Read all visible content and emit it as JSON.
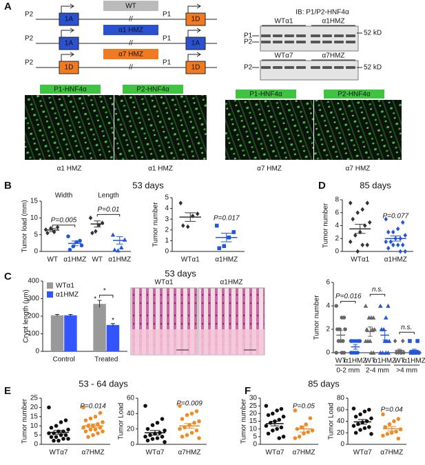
{
  "panel_labels": [
    "A",
    "B",
    "C",
    "D",
    "E",
    "F"
  ],
  "panel_a": {
    "constructs": [
      {
        "left_promoter": "P2",
        "left_exon": "1A",
        "insert": "WT",
        "right_promoter": "P1",
        "right_exon": "1D"
      },
      {
        "left_promoter": "P2",
        "left_exon": "1A",
        "insert": "α1 HMZ",
        "right_promoter": "P1",
        "right_exon": "1A"
      },
      {
        "left_promoter": "P2",
        "left_exon": "1D",
        "insert": "α7 HMZ",
        "right_promoter": "P1",
        "right_exon": "1D"
      }
    ],
    "blot_title": "IB: P1/P2-HNF4α",
    "blots": [
      {
        "lanes": [
          "WTα1",
          "α1HMZ"
        ],
        "bands": [
          "P1",
          "P2"
        ],
        "marker": "52 kD"
      },
      {
        "lanes": [
          "WTα7",
          "α7HMZ"
        ],
        "bands": [
          "P2"
        ],
        "marker": "52 kD"
      }
    ],
    "images": [
      {
        "stain": "P1-HNF4α",
        "label": "α1 HMZ"
      },
      {
        "stain": "P2-HNF4α",
        "label": "α1 HMZ"
      },
      {
        "stain": "P1-HNF4α",
        "label": "α7 HMZ"
      },
      {
        "stain": "P2-HNF4α",
        "label": "α7 HMZ"
      }
    ]
  },
  "panel_b": {
    "title": "53 days",
    "charts": [
      {
        "type": "dotplot",
        "ylabel": "Tumor load (mm)",
        "ylim": [
          0,
          15
        ],
        "yticks": [
          0,
          5,
          10,
          15
        ],
        "group_headers": [
          "Width",
          "Length"
        ],
        "groups": [
          {
            "label": "WT",
            "color": "#333333",
            "marker": "diamond",
            "values": [
              6.5,
              7.2,
              5.8,
              6.9,
              5.5
            ],
            "mean": 6.4,
            "sem": 0.5
          },
          {
            "label": "α1HMZ",
            "color": "#2255dd",
            "marker": "circle",
            "values": [
              4.5,
              3.2,
              2.8,
              1.5,
              0.5,
              1.8
            ],
            "mean": 2.4,
            "sem": 0.7
          },
          {
            "label": "WT",
            "color": "#333333",
            "marker": "diamond",
            "values": [
              10,
              8.5,
              7.9,
              6,
              5.5
            ],
            "mean": 8.2,
            "sem": 0.9
          },
          {
            "label": "α1HMZ",
            "color": "#2255dd",
            "marker": "triangle",
            "values": [
              5,
              3.5,
              1.2,
              0.3,
              0.5
            ],
            "mean": 3.3,
            "sem": 1.1
          }
        ],
        "annotations": [
          "P=0.005",
          "P=0.01"
        ]
      },
      {
        "type": "dotplot",
        "ylabel": "Tumor number",
        "ylim": [
          0,
          5
        ],
        "yticks": [
          0,
          1,
          2,
          3,
          4,
          5
        ],
        "groups": [
          {
            "label": "WTα1",
            "color": "#333333",
            "marker": "diamond",
            "values": [
              4.5,
              3.5,
              3.3,
              2.3,
              2.4
            ],
            "mean": 3.2,
            "sem": 0.4
          },
          {
            "label": "α1HMZ",
            "color": "#2255dd",
            "marker": "square",
            "values": [
              2.4,
              1.8,
              1.3,
              0.5,
              0.3
            ],
            "mean": 1.3,
            "sem": 0.4
          }
        ],
        "annotations": [
          "P=0.017"
        ]
      }
    ]
  },
  "panel_c": {
    "title": "53 days",
    "chart": {
      "type": "bar",
      "ylabel": "Crypt length (μm)",
      "ylim": [
        0,
        400
      ],
      "yticks": [
        0,
        100,
        200,
        300,
        400
      ],
      "categories": [
        "Control",
        "Treated"
      ],
      "series": [
        {
          "name": "WTα1",
          "color": "#999999",
          "values": [
            205,
            270
          ],
          "errors": [
            5,
            20
          ]
        },
        {
          "name": "α1HMZ",
          "color": "#3355ff",
          "values": [
            205,
            150
          ],
          "errors": [
            5,
            8
          ]
        }
      ],
      "annotations": [
        "*",
        "*",
        "*"
      ]
    },
    "images": [
      "WTα1",
      "α1HMZ"
    ]
  },
  "panel_d": {
    "title": "85 days",
    "charts": [
      {
        "type": "dotplot",
        "ylabel": "Tumor number",
        "ylim": [
          0,
          8
        ],
        "yticks": [
          0,
          2,
          4,
          6,
          8
        ],
        "groups": [
          {
            "label": "WTα1",
            "color": "#333333",
            "marker": "diamond",
            "values": [
              7.5,
              7.5,
              6.5,
              6,
              5,
              4.5,
              4,
              3,
              2.5,
              1.5,
              1,
              1,
              0
            ],
            "mean": 3.5,
            "sem": 0.7
          },
          {
            "label": "α1HMZ",
            "color": "#2255dd",
            "marker": "diamond",
            "values": [
              5,
              4.5,
              3.5,
              3,
              3,
              2.5,
              2,
              2,
              1.5,
              1.5,
              1,
              1,
              1,
              0.5,
              0,
              0
            ],
            "mean": 2,
            "sem": 0.4
          }
        ],
        "annotations": [
          "P=0.077"
        ]
      },
      {
        "type": "dotplot",
        "ylabel": "Tumor number",
        "ylim": [
          0,
          6
        ],
        "yticks": [
          0,
          2,
          4,
          6
        ],
        "range_labels": [
          "0-2 mm",
          "2-4 mm",
          ">4 mm"
        ],
        "groups": [
          {
            "label": "WT",
            "color": "#666666",
            "marker": "circle",
            "values": [
              4,
              3,
              3,
              2,
              2,
              2,
              1,
              1,
              1,
              0,
              0,
              0
            ],
            "mean": 1.5,
            "sem": 0.4
          },
          {
            "label": "α1HMZ",
            "color": "#2255dd",
            "marker": "circle",
            "values": [
              1,
              1,
              1,
              1,
              1,
              1,
              0,
              0,
              0,
              0
            ],
            "mean": 0.5,
            "sem": 0.2
          },
          {
            "label": "WT",
            "color": "#666666",
            "marker": "triangle",
            "values": [
              4,
              3,
              3,
              3,
              2,
              2,
              2,
              1,
              1,
              1,
              0,
              0
            ],
            "mean": 1.8,
            "sem": 0.4
          },
          {
            "label": "α1HMZ",
            "color": "#2255dd",
            "marker": "triangle",
            "values": [
              4,
              4,
              3,
              2,
              2,
              1,
              1,
              1,
              0,
              0,
              0,
              0
            ],
            "mean": 1.5,
            "sem": 0.4
          },
          {
            "label": "WT",
            "color": "#666666",
            "marker": "diamond",
            "values": [
              1,
              1,
              0,
              0,
              0,
              0,
              0
            ],
            "mean": 0.2,
            "sem": 0.1
          },
          {
            "label": "α1HMZ",
            "color": "#2255dd",
            "marker": "square",
            "values": [
              1,
              1,
              0,
              0,
              0,
              0
            ],
            "mean": 0.2,
            "sem": 0.1
          }
        ],
        "annotations": [
          "P=0.016",
          "n.s.",
          "n.s."
        ]
      }
    ]
  },
  "panel_e": {
    "title": "53 - 64 days",
    "charts": [
      {
        "type": "dotplot",
        "ylabel": "Tumor number",
        "ylim": [
          0,
          25
        ],
        "yticks": [
          0,
          5,
          10,
          15,
          20,
          25
        ],
        "groups": [
          {
            "label": "WTα7",
            "color": "#111111",
            "marker": "circle",
            "values": [
              20,
              13,
              12,
              10,
              9,
              8,
              7,
              7,
              6,
              6,
              5,
              5,
              4,
              4,
              3,
              3,
              2,
              2
            ],
            "mean": 6.5,
            "sem": 1
          },
          {
            "label": "α7HMZ",
            "color": "#f08a24",
            "marker": "circle",
            "values": [
              20,
              17,
              15,
              14,
              13,
              12,
              11,
              10,
              10,
              9,
              9,
              8,
              8,
              7,
              7,
              6,
              5,
              4
            ],
            "mean": 10,
            "sem": 1
          }
        ],
        "annotations": [
          "P=0.014"
        ]
      },
      {
        "type": "dotplot",
        "ylabel": "Tumor Load",
        "ylim": [
          0,
          60
        ],
        "yticks": [
          0,
          20,
          40,
          60
        ],
        "groups": [
          {
            "label": "WTα7",
            "color": "#111111",
            "marker": "circle",
            "values": [
              50,
              33,
              28,
              25,
              20,
              18,
              15,
              14,
              12,
              10,
              10,
              8,
              7,
              5,
              3
            ],
            "mean": 15,
            "sem": 3
          },
          {
            "label": "α7HMZ",
            "color": "#f08a24",
            "marker": "circle",
            "values": [
              50,
              43,
              40,
              38,
              33,
              30,
              28,
              25,
              22,
              20,
              18,
              15,
              12,
              10,
              8
            ],
            "mean": 24,
            "sem": 3
          }
        ],
        "annotations": [
          "P=0.009"
        ]
      }
    ]
  },
  "panel_f": {
    "title": "85 days",
    "charts": [
      {
        "type": "dotplot",
        "ylabel": "Tumor number",
        "ylim": [
          0,
          30
        ],
        "yticks": [
          0,
          5,
          10,
          15,
          20,
          25,
          30
        ],
        "groups": [
          {
            "label": "WTα7",
            "color": "#111111",
            "marker": "circle",
            "values": [
              25,
              23,
              22,
              20,
              19,
              18,
              16,
              15,
              14,
              12,
              11,
              10,
              9,
              7,
              5,
              4
            ],
            "mean": 13.5,
            "sem": 1.5
          },
          {
            "label": "α7HMZ",
            "color": "#f08a24",
            "marker": "circle",
            "values": [
              22,
              17,
              13,
              11,
              10,
              9,
              8,
              7,
              5,
              4
            ],
            "mean": 10,
            "sem": 2
          }
        ],
        "annotations": [
          "P=0.05"
        ]
      },
      {
        "type": "dotplot",
        "ylabel": "Tumor Load",
        "ylim": [
          0,
          80
        ],
        "yticks": [
          0,
          20,
          40,
          60,
          80
        ],
        "groups": [
          {
            "label": "WTα7",
            "color": "#111111",
            "marker": "circle",
            "values": [
              62,
              60,
              57,
              52,
              48,
              45,
              40,
              38,
              35,
              32,
              30,
              28,
              25,
              20,
              18
            ],
            "mean": 39,
            "sem": 4
          },
          {
            "label": "α7HMZ",
            "color": "#f08a24",
            "marker": "circle",
            "values": [
              52,
              44,
              40,
              35,
              30,
              26,
              22,
              20,
              18,
              15,
              10
            ],
            "mean": 27,
            "sem": 4
          }
        ],
        "annotations": [
          "P=0.04"
        ]
      }
    ]
  }
}
